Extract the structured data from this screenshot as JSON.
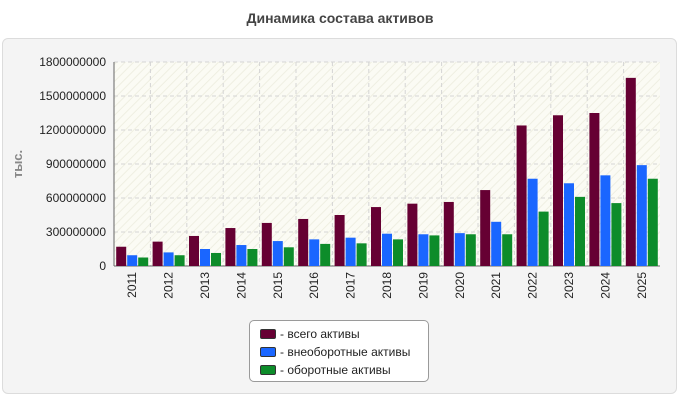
{
  "title": "Динамика состава активов",
  "chart_data": {
    "type": "bar",
    "title": "Динамика состава активов",
    "ylabel": "тыс.",
    "xlabel": "",
    "ylim": [
      0,
      1800000000
    ],
    "yticks": [
      "0",
      "300000000",
      "600000000",
      "900000000",
      "1200000000",
      "1500000000",
      "1800000000"
    ],
    "ytick_values": [
      0,
      300000000,
      600000000,
      900000000,
      1200000000,
      1500000000,
      1800000000
    ],
    "categories": [
      "2011",
      "2012",
      "2013",
      "2014",
      "2015",
      "2016",
      "2017",
      "2018",
      "2019",
      "2020",
      "2021",
      "2022",
      "2023",
      "2024",
      "2025"
    ],
    "series": [
      {
        "name": "- всего активы",
        "color": "#660033",
        "values": [
          170000000,
          215000000,
          265000000,
          335000000,
          380000000,
          415000000,
          450000000,
          520000000,
          550000000,
          565000000,
          670000000,
          1240000000,
          1330000000,
          1350000000,
          1660000000
        ]
      },
      {
        "name": "- внеоборотные активы",
        "color": "#1a66ff",
        "values": [
          95000000,
          120000000,
          150000000,
          185000000,
          220000000,
          235000000,
          250000000,
          285000000,
          280000000,
          290000000,
          390000000,
          770000000,
          730000000,
          800000000,
          890000000
        ]
      },
      {
        "name": "- оборотные активы",
        "color": "#0d8c2a",
        "values": [
          75000000,
          95000000,
          115000000,
          150000000,
          165000000,
          195000000,
          200000000,
          235000000,
          270000000,
          280000000,
          280000000,
          480000000,
          610000000,
          555000000,
          770000000
        ]
      }
    ],
    "grid": true,
    "legend_position": "bottom"
  }
}
